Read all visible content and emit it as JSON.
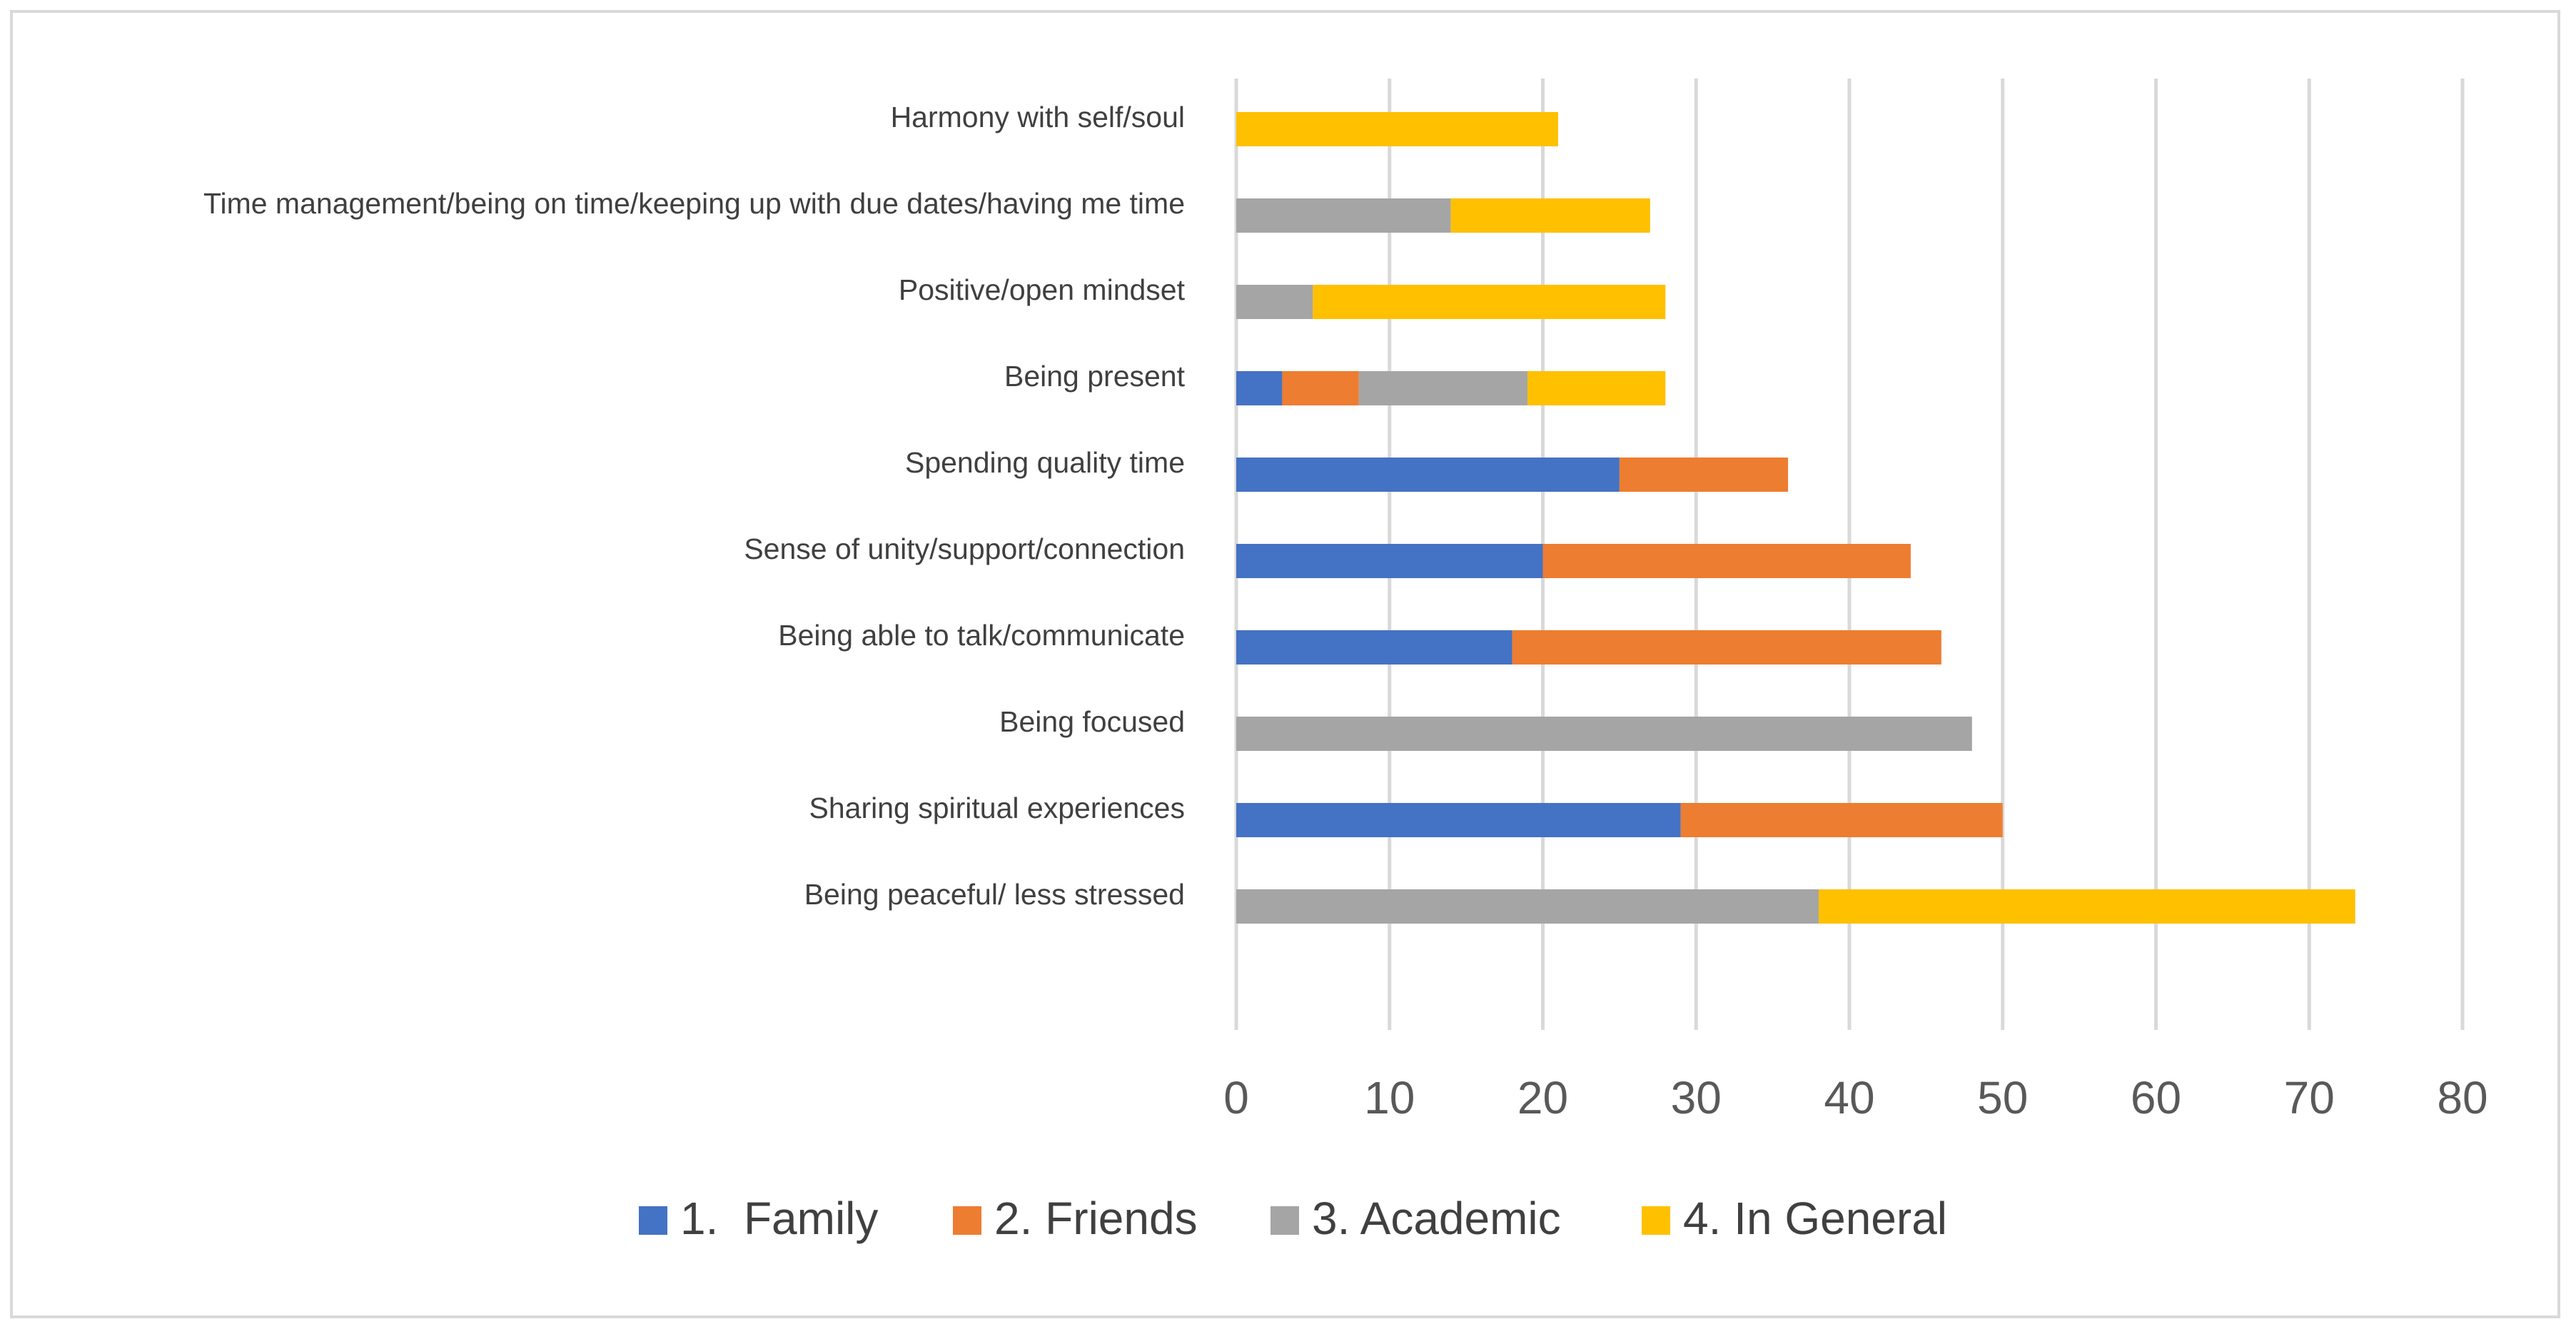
{
  "chart_data": {
    "type": "bar",
    "orientation": "horizontal",
    "stacked": true,
    "title": "",
    "xlabel": "",
    "ylabel": "",
    "xlim": [
      0,
      80
    ],
    "ticks": [
      0,
      10,
      20,
      30,
      40,
      50,
      60,
      70,
      80
    ],
    "grid": true,
    "legend_position": "bottom",
    "categories": [
      "Harmony with self/soul",
      "Time management/being on time/keeping up with due dates/having me time",
      "Positive/open mindset",
      "Being present",
      "Spending quality time",
      "Sense of unity/support/connection",
      "Being able to talk/communicate",
      "Being focused",
      "Sharing spiritual experiences",
      "Being peaceful/ less stressed"
    ],
    "series": [
      {
        "name": "1.  Family",
        "color": "#4472c4",
        "values": [
          0,
          0,
          0,
          3,
          25,
          20,
          18,
          0,
          29,
          0
        ]
      },
      {
        "name": "2. Friends",
        "color": "#ed7d31",
        "values": [
          0,
          0,
          0,
          5,
          11,
          24,
          28,
          0,
          21,
          0
        ]
      },
      {
        "name": "3. Academic",
        "color": "#a5a5a5",
        "values": [
          0,
          14,
          5,
          11,
          0,
          0,
          0,
          48,
          0,
          38
        ]
      },
      {
        "name": "4. In General",
        "color": "#ffc000",
        "values": [
          21,
          13,
          23,
          9,
          0,
          0,
          0,
          0,
          0,
          35
        ]
      }
    ],
    "gridline_color": "#d9d9d9"
  }
}
